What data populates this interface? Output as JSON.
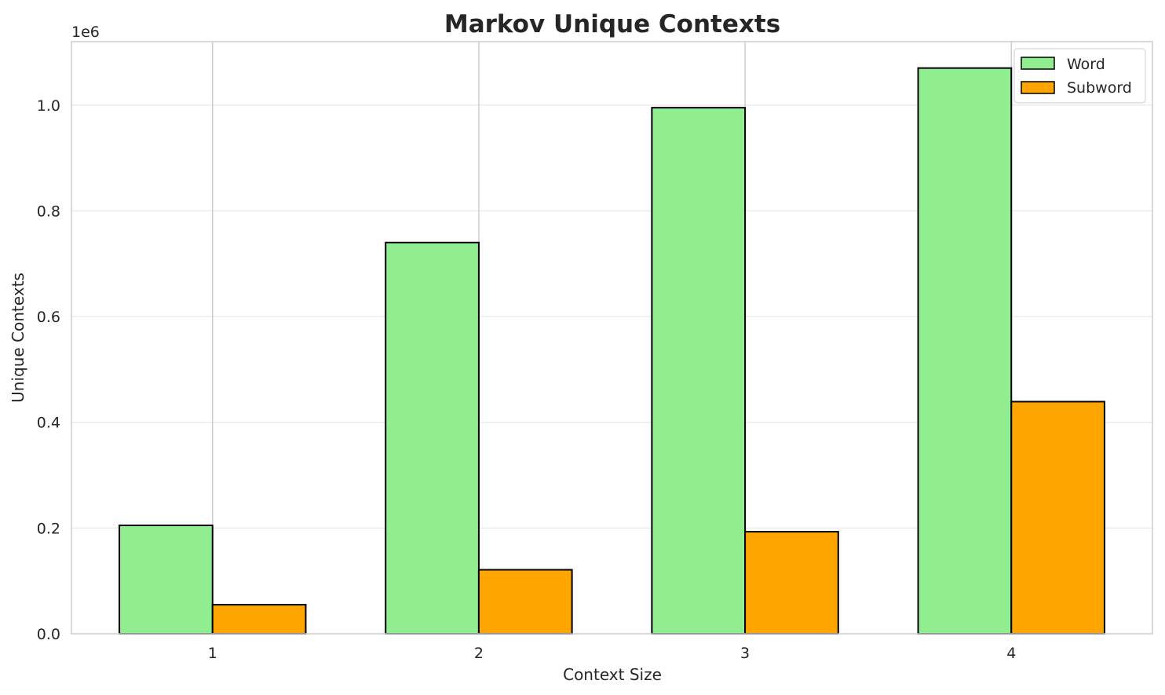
{
  "chart_data": {
    "type": "bar",
    "title": "Markov Unique Contexts",
    "xlabel": "Context Size",
    "ylabel": "Unique Contexts",
    "y_offset_label": "1e6",
    "categories": [
      "1",
      "2",
      "3",
      "4"
    ],
    "series": [
      {
        "name": "Word",
        "color": "#90ee90",
        "values": [
          205000,
          740000,
          995000,
          1070000
        ]
      },
      {
        "name": "Subword",
        "color": "#ffa500",
        "values": [
          55000,
          121000,
          193000,
          439000
        ]
      }
    ],
    "ylim": [
      0,
      1120000
    ],
    "yticks": [
      0,
      200000,
      400000,
      600000,
      800000,
      1000000
    ],
    "ytick_labels": [
      "0.0",
      "0.2",
      "0.4",
      "0.6",
      "0.8",
      "1.0"
    ],
    "grid": true,
    "legend_position": "top-right"
  }
}
